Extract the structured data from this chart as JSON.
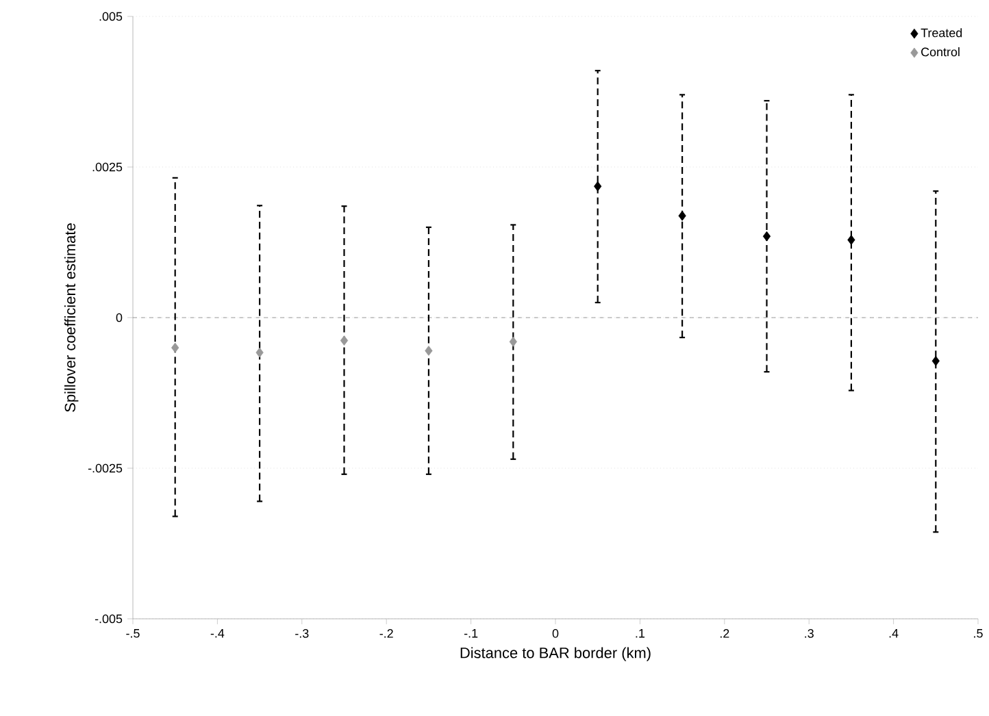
{
  "chart_data": {
    "type": "scatter",
    "xlabel": "Distance to BAR border (km)",
    "ylabel": "Spillover coefficient estimate",
    "series": [
      {
        "name": "Treated",
        "color": "#000000",
        "x": [
          0.05,
          0.15,
          0.25,
          0.35,
          0.45
        ],
        "values": [
          0.00218,
          0.00169,
          0.00135,
          0.00129,
          -0.00072
        ],
        "errors": [
          [
            0.00025,
            0.0041
          ],
          [
            -0.00033,
            0.0037
          ],
          [
            -0.0009,
            0.0036
          ],
          [
            -0.00121,
            0.0037
          ],
          [
            -0.00356,
            0.0021
          ]
        ]
      },
      {
        "name": "Control",
        "color": "#999999",
        "x": [
          -0.45,
          -0.35,
          -0.25,
          -0.15,
          -0.05
        ],
        "values": [
          -0.0005,
          -0.00058,
          -0.00038,
          -0.00055,
          -0.0004
        ],
        "errors": [
          [
            -0.0033,
            0.00232
          ],
          [
            -0.00305,
            0.00186
          ],
          [
            -0.0026,
            0.00185
          ],
          [
            -0.0026,
            0.0015
          ],
          [
            -0.00235,
            0.00154
          ]
        ]
      }
    ],
    "xlim": [
      -0.5,
      0.5
    ],
    "xticks": [
      {
        "value": -0.5,
        "label": "-.5"
      },
      {
        "value": -0.4,
        "label": "-.4"
      },
      {
        "value": -0.3,
        "label": "-.3"
      },
      {
        "value": -0.2,
        "label": "-.2"
      },
      {
        "value": -0.1,
        "label": "-.1"
      },
      0,
      {
        "value": 0.1,
        "label": ".1"
      },
      {
        "value": 0.2,
        "label": ".2"
      },
      {
        "value": 0.3,
        "label": ".3"
      },
      {
        "value": 0.4,
        "label": ".4"
      },
      {
        "value": 0.5,
        "label": ".5"
      }
    ],
    "ylim": [
      -0.005,
      0.005
    ],
    "yticks": [
      {
        "value": -0.005,
        "label": "-.005"
      },
      {
        "value": -0.0025,
        "label": "-.0025"
      },
      0,
      {
        "value": 0.0025,
        "label": ".0025"
      },
      {
        "value": 0.005,
        "label": ".005"
      }
    ],
    "ref_lines": [
      {
        "axis": "y",
        "value": 0,
        "color": "#808080",
        "line_style": "dashed"
      }
    ],
    "grid": "y",
    "legend": "top right",
    "marker": "diamond"
  }
}
